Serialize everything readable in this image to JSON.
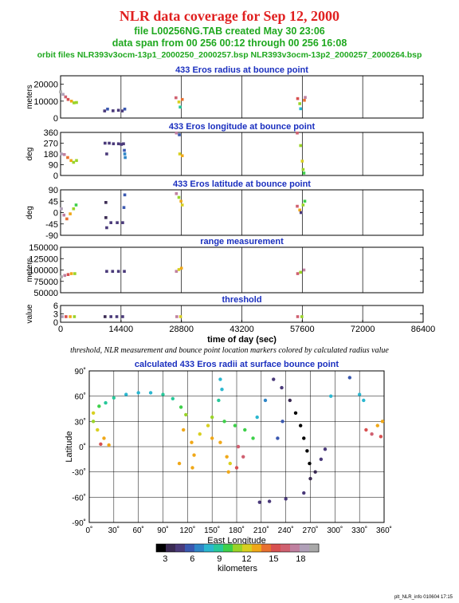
{
  "header": {
    "title": "NLR data coverage for Sep 12, 2000",
    "file_line": "file L00256NG.TAB created May 30 23:06",
    "span_line": "data span from 00 256 00:12 through 00 256 16:08",
    "orbit_line": "orbit files NLR393v3ocm-13p1_2000250_2000257.bsp NLR393v3ocm-13p2_2000257_2000264.bsp"
  },
  "caption": "threshold, NLR measurement and bounce point location markers colored by calculated radius value",
  "footer": "plt_NLR_info 010604 17:15",
  "colorbar": {
    "colors": [
      "#000000",
      "#3a2a52",
      "#4a3a7a",
      "#3a58b0",
      "#2f86c8",
      "#2bb7d0",
      "#28c89a",
      "#3ed04a",
      "#9ad428",
      "#d8d020",
      "#f0a818",
      "#e87030",
      "#d85050",
      "#d06070",
      "#c080a0",
      "#b0a0b8",
      "#a8a8a8"
    ],
    "ticks": [
      "3",
      "6",
      "9",
      "12",
      "15",
      "18"
    ],
    "label": "kilometers"
  },
  "chart_data": [
    {
      "type": "scatter",
      "title": "433 Eros radius at bounce point",
      "ylabel": "meters",
      "xlim": [
        0,
        86400
      ],
      "ylim": [
        0,
        25000
      ],
      "yticks": [
        "0",
        "10000",
        "20000"
      ],
      "points": [
        {
          "x": 0,
          "y": 15500,
          "c": 1
        },
        {
          "x": 600,
          "y": 14000,
          "c": 0.93
        },
        {
          "x": 1200,
          "y": 12500,
          "c": 0.83
        },
        {
          "x": 1800,
          "y": 11000,
          "c": 0.72
        },
        {
          "x": 2600,
          "y": 10000,
          "c": 0.6
        },
        {
          "x": 3200,
          "y": 9000,
          "c": 0.5
        },
        {
          "x": 3800,
          "y": 9200,
          "c": 0.48
        },
        {
          "x": 10500,
          "y": 4200,
          "c": 0.12
        },
        {
          "x": 11200,
          "y": 5300,
          "c": 0.18
        },
        {
          "x": 12500,
          "y": 4300,
          "c": 0.15
        },
        {
          "x": 13800,
          "y": 4600,
          "c": 0.12
        },
        {
          "x": 14700,
          "y": 4200,
          "c": 0.1
        },
        {
          "x": 15300,
          "y": 5300,
          "c": 0.18
        },
        {
          "x": 27500,
          "y": 12000,
          "c": 0.8
        },
        {
          "x": 28200,
          "y": 9500,
          "c": 0.55
        },
        {
          "x": 28500,
          "y": 6500,
          "c": 0.35
        },
        {
          "x": 29000,
          "y": 11000,
          "c": 0.7
        },
        {
          "x": 56500,
          "y": 11500,
          "c": 0.78
        },
        {
          "x": 57000,
          "y": 8500,
          "c": 0.5
        },
        {
          "x": 57200,
          "y": 5500,
          "c": 0.3
        },
        {
          "x": 58100,
          "y": 10500,
          "c": 0.68
        },
        {
          "x": 58300,
          "y": 12200,
          "c": 0.85
        }
      ]
    },
    {
      "type": "scatter",
      "title": "433 Eros longitude at bounce point",
      "ylabel": "deg",
      "xlim": [
        0,
        86400
      ],
      "ylim": [
        0,
        360
      ],
      "yticks": [
        "0",
        "90",
        "180",
        "270",
        "360"
      ],
      "points": [
        {
          "x": 200,
          "y": 180,
          "c": 0.95
        },
        {
          "x": 900,
          "y": 175,
          "c": 0.85
        },
        {
          "x": 1700,
          "y": 150,
          "c": 0.7
        },
        {
          "x": 2500,
          "y": 125,
          "c": 0.6
        },
        {
          "x": 3100,
          "y": 110,
          "c": 0.5
        },
        {
          "x": 3800,
          "y": 125,
          "c": 0.5
        },
        {
          "x": 10600,
          "y": 270,
          "c": 0.1
        },
        {
          "x": 11000,
          "y": 180,
          "c": 0.15
        },
        {
          "x": 11600,
          "y": 270,
          "c": 0.12
        },
        {
          "x": 12600,
          "y": 265,
          "c": 0.1
        },
        {
          "x": 13800,
          "y": 265,
          "c": 0.1
        },
        {
          "x": 14500,
          "y": 260,
          "c": 0.12
        },
        {
          "x": 15000,
          "y": 265,
          "c": 0.12
        },
        {
          "x": 15200,
          "y": 210,
          "c": 0.2
        },
        {
          "x": 15300,
          "y": 180,
          "c": 0.25
        },
        {
          "x": 15400,
          "y": 150,
          "c": 0.25
        },
        {
          "x": 27600,
          "y": 355,
          "c": 0.85
        },
        {
          "x": 28300,
          "y": 340,
          "c": 0.2
        },
        {
          "x": 28400,
          "y": 180,
          "c": 0.55
        },
        {
          "x": 29000,
          "y": 165,
          "c": 0.6
        },
        {
          "x": 56400,
          "y": 355,
          "c": 0.8
        },
        {
          "x": 57200,
          "y": 250,
          "c": 0.5
        },
        {
          "x": 57600,
          "y": 120,
          "c": 0.55
        },
        {
          "x": 57800,
          "y": 50,
          "c": 0.5
        },
        {
          "x": 58000,
          "y": 20,
          "c": 0.45
        }
      ]
    },
    {
      "type": "scatter",
      "title": "433 Eros latitude at bounce point",
      "ylabel": "deg",
      "xlim": [
        0,
        86400
      ],
      "ylim": [
        -90,
        90
      ],
      "yticks": [
        "-90",
        "-45",
        "0",
        "45",
        "90"
      ],
      "points": [
        {
          "x": 200,
          "y": 15,
          "c": 0.95
        },
        {
          "x": 800,
          "y": -10,
          "c": 0.85
        },
        {
          "x": 1500,
          "y": -25,
          "c": 0.7
        },
        {
          "x": 2300,
          "y": -5,
          "c": 0.6
        },
        {
          "x": 3100,
          "y": 15,
          "c": 0.5
        },
        {
          "x": 3700,
          "y": 30,
          "c": 0.45
        },
        {
          "x": 10800,
          "y": 40,
          "c": 0.05
        },
        {
          "x": 10800,
          "y": -20,
          "c": 0.08
        },
        {
          "x": 11000,
          "y": -60,
          "c": 0.15
        },
        {
          "x": 12000,
          "y": -40,
          "c": 0.1
        },
        {
          "x": 13500,
          "y": -40,
          "c": 0.12
        },
        {
          "x": 14800,
          "y": -40,
          "c": 0.12
        },
        {
          "x": 15100,
          "y": 20,
          "c": 0.18
        },
        {
          "x": 15300,
          "y": 70,
          "c": 0.2
        },
        {
          "x": 27600,
          "y": 75,
          "c": 0.85
        },
        {
          "x": 28200,
          "y": 60,
          "c": 0.5
        },
        {
          "x": 28700,
          "y": 45,
          "c": 0.6
        },
        {
          "x": 29000,
          "y": 30,
          "c": 0.55
        },
        {
          "x": 56400,
          "y": 25,
          "c": 0.8
        },
        {
          "x": 57000,
          "y": 10,
          "c": 0.6
        },
        {
          "x": 57300,
          "y": 0,
          "c": 0.1
        },
        {
          "x": 57800,
          "y": 30,
          "c": 0.5
        },
        {
          "x": 58200,
          "y": 45,
          "c": 0.45
        }
      ]
    },
    {
      "type": "scatter",
      "title": "range measurement",
      "ylabel": "meters",
      "xlim": [
        0,
        86400
      ],
      "ylim": [
        50000,
        150000
      ],
      "yticks": [
        "50000",
        "75000",
        "100000",
        "125000",
        "150000"
      ],
      "points": [
        {
          "x": 200,
          "y": 85000,
          "c": 1
        },
        {
          "x": 1000,
          "y": 88000,
          "c": 0.9
        },
        {
          "x": 1800,
          "y": 90000,
          "c": 0.75
        },
        {
          "x": 2600,
          "y": 92000,
          "c": 0.6
        },
        {
          "x": 3400,
          "y": 92000,
          "c": 0.5
        },
        {
          "x": 11000,
          "y": 97000,
          "c": 0.1
        },
        {
          "x": 12400,
          "y": 97000,
          "c": 0.1
        },
        {
          "x": 13800,
          "y": 97000,
          "c": 0.1
        },
        {
          "x": 15200,
          "y": 97000,
          "c": 0.12
        },
        {
          "x": 27600,
          "y": 97000,
          "c": 0.85
        },
        {
          "x": 28200,
          "y": 101000,
          "c": 0.55
        },
        {
          "x": 28800,
          "y": 104000,
          "c": 0.6
        },
        {
          "x": 56500,
          "y": 92000,
          "c": 0.8
        },
        {
          "x": 57200,
          "y": 95000,
          "c": 0.5
        },
        {
          "x": 58000,
          "y": 100000,
          "c": 0.85
        }
      ]
    },
    {
      "type": "scatter",
      "title": "threshold",
      "ylabel": "value",
      "xlabel": "time of day (sec)",
      "xlim": [
        0,
        86400
      ],
      "ylim": [
        0,
        6
      ],
      "yticks": [
        "0",
        "3",
        "6"
      ],
      "xticks": [
        "0",
        "14400",
        "28800",
        "43200",
        "57600",
        "72000",
        "86400"
      ],
      "points": [
        {
          "x": 400,
          "y": 2,
          "c": 0.95
        },
        {
          "x": 1300,
          "y": 2,
          "c": 0.75
        },
        {
          "x": 2300,
          "y": 2,
          "c": 0.6
        },
        {
          "x": 3300,
          "y": 2,
          "c": 0.5
        },
        {
          "x": 10600,
          "y": 2,
          "c": 0.08
        },
        {
          "x": 12000,
          "y": 2,
          "c": 0.1
        },
        {
          "x": 13400,
          "y": 2,
          "c": 0.1
        },
        {
          "x": 14800,
          "y": 2,
          "c": 0.12
        },
        {
          "x": 27700,
          "y": 2,
          "c": 0.85
        },
        {
          "x": 28600,
          "y": 2,
          "c": 0.55
        },
        {
          "x": 56500,
          "y": 2,
          "c": 0.8
        },
        {
          "x": 57500,
          "y": 2,
          "c": 0.5
        }
      ]
    },
    {
      "type": "scatter",
      "title": "calculated 433 Eros radii at surface bounce point",
      "xlabel": "East Longitude",
      "ylabel": "Latitude",
      "xlim": [
        0,
        360
      ],
      "ylim": [
        -90,
        90
      ],
      "xticks": [
        "0˚",
        "30˚",
        "60˚",
        "90˚",
        "120˚",
        "150˚",
        "180˚",
        "210˚",
        "240˚",
        "270˚",
        "300˚",
        "330˚",
        "360˚"
      ],
      "yticks": [
        "90˚",
        "60˚",
        "30˚",
        "0˚",
        "-30˚",
        "-60˚",
        "-90˚"
      ],
      "points": [
        {
          "x": 5,
          "y": 40,
          "c": 0.55
        },
        {
          "x": 12,
          "y": 48,
          "c": 0.45
        },
        {
          "x": 20,
          "y": 52,
          "c": 0.38
        },
        {
          "x": 30,
          "y": 58,
          "c": 0.35
        },
        {
          "x": 45,
          "y": 62,
          "c": 0.33
        },
        {
          "x": 60,
          "y": 64,
          "c": 0.33
        },
        {
          "x": 75,
          "y": 64,
          "c": 0.33
        },
        {
          "x": 90,
          "y": 62,
          "c": 0.35
        },
        {
          "x": 102,
          "y": 57,
          "c": 0.4
        },
        {
          "x": 112,
          "y": 47,
          "c": 0.45
        },
        {
          "x": 118,
          "y": 38,
          "c": 0.5
        },
        {
          "x": 5,
          "y": 30,
          "c": 0.5
        },
        {
          "x": 10,
          "y": 20,
          "c": 0.55
        },
        {
          "x": 18,
          "y": 10,
          "c": 0.6
        },
        {
          "x": 24,
          "y": 2,
          "c": 0.65
        },
        {
          "x": 14,
          "y": 3,
          "c": 0.75
        },
        {
          "x": 115,
          "y": 20,
          "c": 0.6
        },
        {
          "x": 125,
          "y": 5,
          "c": 0.62
        },
        {
          "x": 128,
          "y": -10,
          "c": 0.65
        },
        {
          "x": 126,
          "y": -25,
          "c": 0.6
        },
        {
          "x": 110,
          "y": -20,
          "c": 0.6
        },
        {
          "x": 135,
          "y": 15,
          "c": 0.58
        },
        {
          "x": 145,
          "y": 25,
          "c": 0.55
        },
        {
          "x": 150,
          "y": 10,
          "c": 0.6
        },
        {
          "x": 160,
          "y": 5,
          "c": 0.62
        },
        {
          "x": 168,
          "y": -12,
          "c": 0.6
        },
        {
          "x": 172,
          "y": -20,
          "c": 0.58
        },
        {
          "x": 182,
          "y": 0,
          "c": 0.8
        },
        {
          "x": 188,
          "y": -12,
          "c": 0.8
        },
        {
          "x": 180,
          "y": -25,
          "c": 0.78
        },
        {
          "x": 170,
          "y": -30,
          "c": 0.6
        },
        {
          "x": 150,
          "y": 35,
          "c": 0.5
        },
        {
          "x": 165,
          "y": 30,
          "c": 0.45
        },
        {
          "x": 178,
          "y": 25,
          "c": 0.45
        },
        {
          "x": 190,
          "y": 20,
          "c": 0.45
        },
        {
          "x": 200,
          "y": 10,
          "c": 0.42
        },
        {
          "x": 158,
          "y": 55,
          "c": 0.38
        },
        {
          "x": 162,
          "y": 68,
          "c": 0.3
        },
        {
          "x": 160,
          "y": 80,
          "c": 0.3
        },
        {
          "x": 205,
          "y": 35,
          "c": 0.3
        },
        {
          "x": 215,
          "y": 55,
          "c": 0.25
        },
        {
          "x": 225,
          "y": 80,
          "c": 0.12
        },
        {
          "x": 235,
          "y": 70,
          "c": 0.1
        },
        {
          "x": 245,
          "y": 55,
          "c": 0.05
        },
        {
          "x": 252,
          "y": 40,
          "c": 0.02
        },
        {
          "x": 258,
          "y": 25,
          "c": 0.02
        },
        {
          "x": 262,
          "y": 10,
          "c": 0.02
        },
        {
          "x": 266,
          "y": -5,
          "c": 0.02
        },
        {
          "x": 269,
          "y": -20,
          "c": 0.03
        },
        {
          "x": 270,
          "y": -38,
          "c": 0.05
        },
        {
          "x": 276,
          "y": -30,
          "c": 0.08
        },
        {
          "x": 283,
          "y": -15,
          "c": 0.1
        },
        {
          "x": 288,
          "y": -3,
          "c": 0.12
        },
        {
          "x": 262,
          "y": -55,
          "c": 0.12
        },
        {
          "x": 240,
          "y": -62,
          "c": 0.12
        },
        {
          "x": 220,
          "y": -65,
          "c": 0.12
        },
        {
          "x": 208,
          "y": -66,
          "c": 0.1
        },
        {
          "x": 230,
          "y": 10,
          "c": 0.2
        },
        {
          "x": 236,
          "y": 30,
          "c": 0.2
        },
        {
          "x": 295,
          "y": 60,
          "c": 0.3
        },
        {
          "x": 318,
          "y": 82,
          "c": 0.2
        },
        {
          "x": 330,
          "y": 62,
          "c": 0.3
        },
        {
          "x": 335,
          "y": 55,
          "c": 0.3
        },
        {
          "x": 338,
          "y": 20,
          "c": 0.78
        },
        {
          "x": 345,
          "y": 15,
          "c": 0.8
        },
        {
          "x": 352,
          "y": 25,
          "c": 0.65
        },
        {
          "x": 358,
          "y": 30,
          "c": 0.6
        },
        {
          "x": 356,
          "y": 12,
          "c": 0.75
        }
      ]
    }
  ]
}
